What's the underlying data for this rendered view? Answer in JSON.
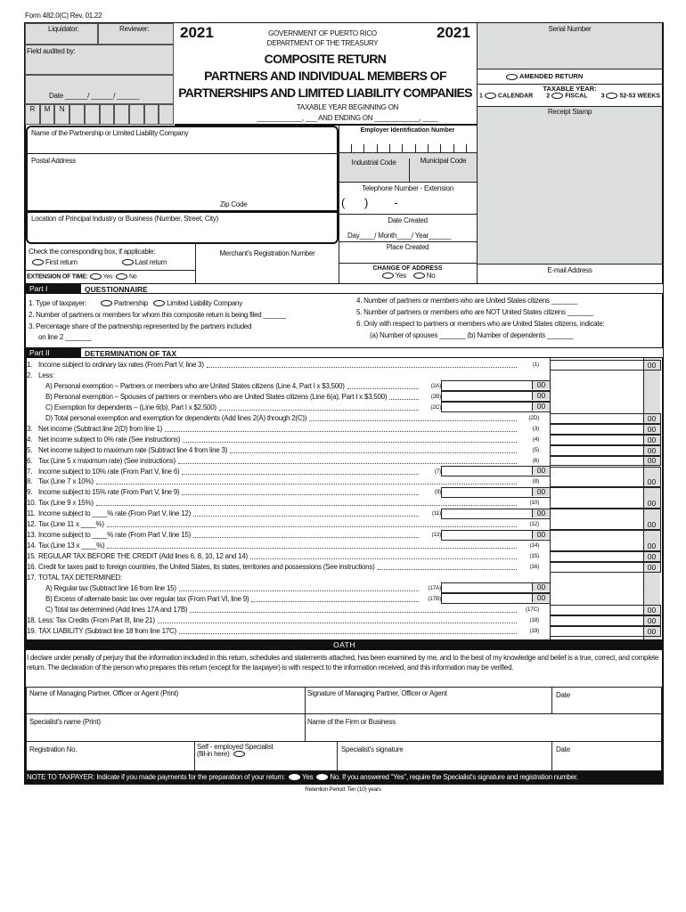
{
  "header": {
    "form_id": "Form  482.0(C)  Rev.  01.22",
    "liquidator": "Liquidator:",
    "reviewer": "Reviewer:",
    "field_audited": "Field audited by:",
    "date": "Date ______/ ______/ ______",
    "rmn": [
      "R",
      "M",
      "N"
    ],
    "year_left": "2021",
    "year_right": "2021",
    "gov": "GOVERNMENT  OF  PUERTO  RICO",
    "dept": "DEPARTMENT  OF  THE  TREASURY",
    "title1": "COMPOSITE RETURN",
    "title2": "PARTNERS AND INDIVIDUAL MEMBERS  OF",
    "title3": "PARTNERSHIPS AND LIMITED LIABILITY COMPANIES",
    "taxable_begin": "TAXABLE YEAR BEGINNING ON",
    "taxable_end": "____________, ___ AND ENDING ON ____________, ____",
    "serial": "Serial Number",
    "amended": "AMENDED RETURN",
    "taxable_year": "TAXABLE YEAR:",
    "ty_options": [
      {
        "n": "1",
        "label": "CALENDAR"
      },
      {
        "n": "2",
        "label": "FISCAL"
      },
      {
        "n": "3",
        "label": "52-53 WEEKS"
      }
    ],
    "receipt": "Receipt Stamp"
  },
  "info": {
    "name": "Name of the Partnership or Limited Liability Company",
    "ein": "Employer Identification Number",
    "postal": "Postal Address",
    "zip": "Zip Code",
    "industrial": "Industrial Code",
    "municipal": "Municipal Code",
    "telephone": "Telephone Number - Extension",
    "phone_mask": "(      )        -",
    "location": "Location of Principal Industry or Business (Number, Street, City)",
    "date_created": "Date Created",
    "date_mask": "Day____/ Month____/ Year______",
    "place_created": "Place Created",
    "check": "Check the corresponding box, if applicable:",
    "first_return": "First return",
    "last_return": "Last return",
    "merchant": "Merchant's Registration Number",
    "extension": "EXTENSION OF TIME:",
    "yes": "Yes",
    "no": "No",
    "change_address": "CHANGE OF ADDRESS",
    "email": "E-mail  Address"
  },
  "part1": {
    "tag": "Part I",
    "title": "QUESTIONNAIRE",
    "q1": "1. Type of taxpayer:",
    "q1a": "Partnership",
    "q1b": "Limited Liability Company",
    "q2": "2. Number of partners or members for whom this composite return is being filed ______",
    "q3a": "3.  Percentage share of the partnership represented by the partners included",
    "q3b": "on line 2 _______",
    "q4": "4.  Number of partners or members who are United States citizens _______",
    "q5": "5.  Number of partners or members who are NOT United States citizens _______",
    "q6a": "6.  Only with respect to partners or members who are United States citizens, indicate:",
    "q6b": "(a) Number of spouses _______  (b) Number of dependents _______"
  },
  "part2": {
    "tag": "Part II",
    "title": "DETERMINATION OF TAX",
    "cents": "00",
    "lines": [
      {
        "n": "1.",
        "t": "Income subject to ordinary tax rates (From Part V, line 3)",
        "c": "(1)",
        "inner": false,
        "outer": true
      },
      {
        "n": "2.",
        "t": "Less:",
        "c": "",
        "inner": false,
        "outer": false,
        "nodots": true
      },
      {
        "n": "",
        "t": "A) Personal exemption – Partners or members who are United States citizens (Line 4, Part I x $3,500)",
        "c": "(2A)",
        "inner": true,
        "outer": false
      },
      {
        "n": "",
        "t": "B) Personal exemption – Spouses of partners or members who are United States citizens (Line 6(a), Part I x $3,500)",
        "c": "(2B)",
        "inner": true,
        "outer": false
      },
      {
        "n": "",
        "t": "C) Exemption for dependents  –  (Line 6(b),  Part  I  x  $2,500)",
        "c": "(2C)",
        "inner": true,
        "outer": false
      },
      {
        "n": "",
        "t": "D) Total personal exemption and exemption for dependents (Add lines 2(A) through 2(C))",
        "c": "(2D)",
        "inner": false,
        "outer": true
      },
      {
        "n": "3.",
        "t": "Net income (Subtract line 2(D) from line 1)",
        "c": "(3)",
        "inner": false,
        "outer": true
      },
      {
        "n": "4.",
        "t": "Net income subject to 0% rate (See instructions)",
        "c": "(4)",
        "inner": false,
        "outer": true
      },
      {
        "n": "5.",
        "t": "Net income subject to maximum rate (Subtract line 4 from line 3)",
        "c": "(5)",
        "inner": false,
        "outer": true
      },
      {
        "n": "6.",
        "t": "Tax (Line 5 x maximum rate) (See instructions)",
        "c": "(6)",
        "inner": false,
        "outer": true
      },
      {
        "n": "7.",
        "t": "Income subject to 10% rate (From Part V, line 6)",
        "c": "(7)",
        "inner": true,
        "outer": false
      },
      {
        "n": "8.",
        "t": "Tax (Line 7 x 10%)",
        "c": "(8)",
        "inner": false,
        "outer": true
      },
      {
        "n": "9.",
        "t": "Income subject to 15% rate (From Part V, line 9)",
        "c": "(9)",
        "inner": true,
        "outer": false
      },
      {
        "n": "10.",
        "t": "Tax (Line 9 x 15%)",
        "c": "(10)",
        "inner": false,
        "outer": true
      },
      {
        "n": "11.",
        "t": "Income subject to ____% rate (From Part V, line 12)",
        "c": "(11)",
        "inner": true,
        "outer": false
      },
      {
        "n": "12.",
        "t": "Tax (Line 11 x ____%)",
        "c": "(12)",
        "inner": false,
        "outer": true
      },
      {
        "n": "13.",
        "t": "Income subject to ____% rate (From Part V, line 15)",
        "c": "(13)",
        "inner": true,
        "outer": false
      },
      {
        "n": "14.",
        "t": "Tax (Line 13 x ____%)",
        "c": "(14)",
        "inner": false,
        "outer": true
      },
      {
        "n": "15.",
        "t": "REGULAR TAX BEFORE THE CREDIT (Add lines 6, 8, 10, 12 and 14)",
        "c": "(15)",
        "inner": false,
        "outer": true
      },
      {
        "n": "16.",
        "t": "Credit for taxes paid to foreign countries, the United States, its states, territories and possessions (See instructions)",
        "c": "(16)",
        "inner": false,
        "outer": true
      },
      {
        "n": "17.",
        "t": "TOTAL TAX DETERMINED:",
        "c": "",
        "inner": false,
        "outer": false,
        "nodots": true
      },
      {
        "n": "",
        "t": "A) Regular tax (Subtract line 16 from line 15)",
        "c": "(17A)",
        "inner": true,
        "outer": false
      },
      {
        "n": "",
        "t": "B) Excess of alternate basic tax over regular tax (From Part VI, line 9)",
        "c": "(17B)",
        "inner": true,
        "outer": false
      },
      {
        "n": "",
        "t": "C) Total tax determined (Add lines 17A and 17B)",
        "c": "(17C)",
        "inner": false,
        "outer": true
      },
      {
        "n": "18.",
        "t": "Less: Tax Credits (From Part III, line 21)",
        "c": "(18)",
        "inner": false,
        "outer": true
      },
      {
        "n": "19.",
        "t": "TAX LIABILITY (Subtract line 18 from line 17C)",
        "c": "(19)",
        "inner": false,
        "outer": true
      }
    ]
  },
  "oath": {
    "title": "OATH",
    "text": "I declare under penalty of perjury that the information included in this return, schedules and statements attached, has been examined by me, and to the best of my knowledge and belief is a true, correct, and complete return. The declaration of the person who prepares this return (except for the taxpayer) is with respect to the information received, and this information may be verified.",
    "mp_name": "Name of Managing Partner, Officer or Agent (Print)",
    "mp_sig": "Signature of Managing Partner, Officer or Agent",
    "date": "Date",
    "spec_name": "Specialist's name (Print)",
    "firm": "Name of the Firm or Business",
    "reg": "Registration No.",
    "self_emp": "Self - employed Specialist",
    "fill_in": "(fill-in here)",
    "spec_sig": "Specialist's signature",
    "note1": "NOTE TO TAXPAYER: Indicate if you made payments for the preparation of your return:",
    "note_yes": "Yes",
    "note2": "No. If you answered “Yes”, require the Specialist's signature and registration number.",
    "retention": "Retention Period: Ten (10) years"
  }
}
